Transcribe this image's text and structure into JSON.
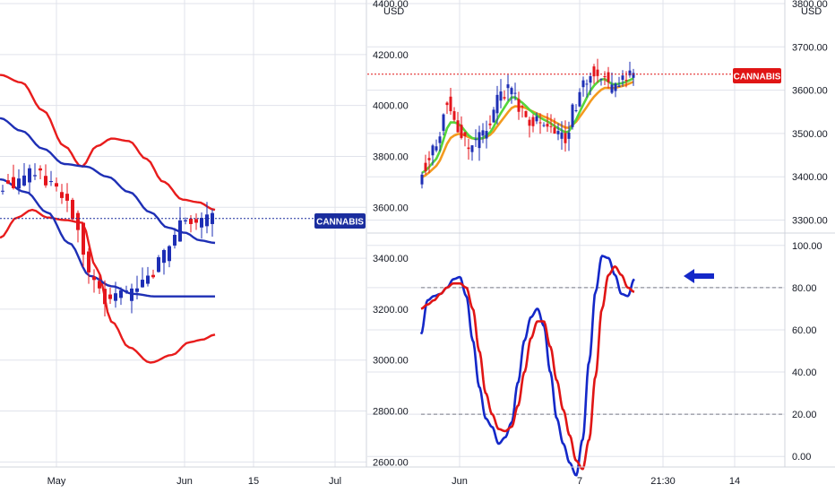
{
  "colors": {
    "up": "#1e2fb5",
    "down": "#e5151c",
    "band_outer": "#e81c1c",
    "band_mid": "#1e2fb5",
    "ema_fast": "#56d63a",
    "ema_slow": "#f39a1f",
    "k_line": "#1428c8",
    "d_line": "#e01515",
    "arrow": "#1428c8",
    "left_tag": "#1a2d9e",
    "right_tag": "#e01515",
    "grid": "#e0e3eb"
  },
  "chart_data": [
    {
      "type": "candlestick",
      "name": "left-panel",
      "price_axis": {
        "unit": "USD",
        "ticks": [
          "4400.00",
          "4200.00",
          "4000.00",
          "3800.00",
          "3600.00",
          "3400.00",
          "3200.00",
          "3000.00",
          "2800.00",
          "2600.00"
        ],
        "range": [
          2580,
          4400
        ]
      },
      "time_axis": {
        "ticks": [
          "May",
          "Jun",
          "15",
          "Jul"
        ]
      },
      "symbol_tag": "CANNABIS",
      "last_price": 3556,
      "indicators": [
        "bollinger-upper",
        "bollinger-middle",
        "bollinger-lower",
        "sma"
      ]
    },
    {
      "type": "candlestick",
      "name": "right-price-panel",
      "price_axis": {
        "unit": "USD",
        "ticks": [
          "3800.00",
          "3700.00",
          "3600.00",
          "3500.00",
          "3400.00",
          "3300.00"
        ],
        "range": [
          3270,
          3800
        ]
      },
      "symbol_tag": "CANNABIS",
      "last_price": 3637,
      "indicators": [
        "ema-fast",
        "ema-slow"
      ]
    },
    {
      "type": "line",
      "name": "right-stochastic-panel",
      "y_axis": {
        "ticks": [
          "100.00",
          "80.00",
          "60.00",
          "40.00",
          "20.00",
          "0.00"
        ],
        "range": [
          -5,
          105
        ]
      },
      "levels": [
        80,
        20
      ],
      "time_axis": {
        "ticks": [
          "Jun",
          "7",
          "21:30",
          "14"
        ]
      },
      "series": [
        {
          "key": "k",
          "values": [
            58,
            74,
            76,
            77,
            80,
            84,
            85,
            76,
            55,
            33,
            18,
            14,
            6,
            9,
            16,
            35,
            55,
            66,
            70,
            62,
            40,
            18,
            6,
            -3,
            -9,
            8,
            45,
            78,
            95,
            94,
            86,
            77,
            76,
            84
          ]
        },
        {
          "key": "d",
          "values": [
            70,
            72,
            74,
            77,
            80,
            82,
            82,
            80,
            70,
            50,
            30,
            20,
            13,
            12,
            14,
            24,
            40,
            56,
            64,
            64,
            52,
            36,
            22,
            10,
            -2,
            -6,
            8,
            38,
            70,
            86,
            90,
            86,
            80,
            78
          ]
        }
      ]
    }
  ]
}
